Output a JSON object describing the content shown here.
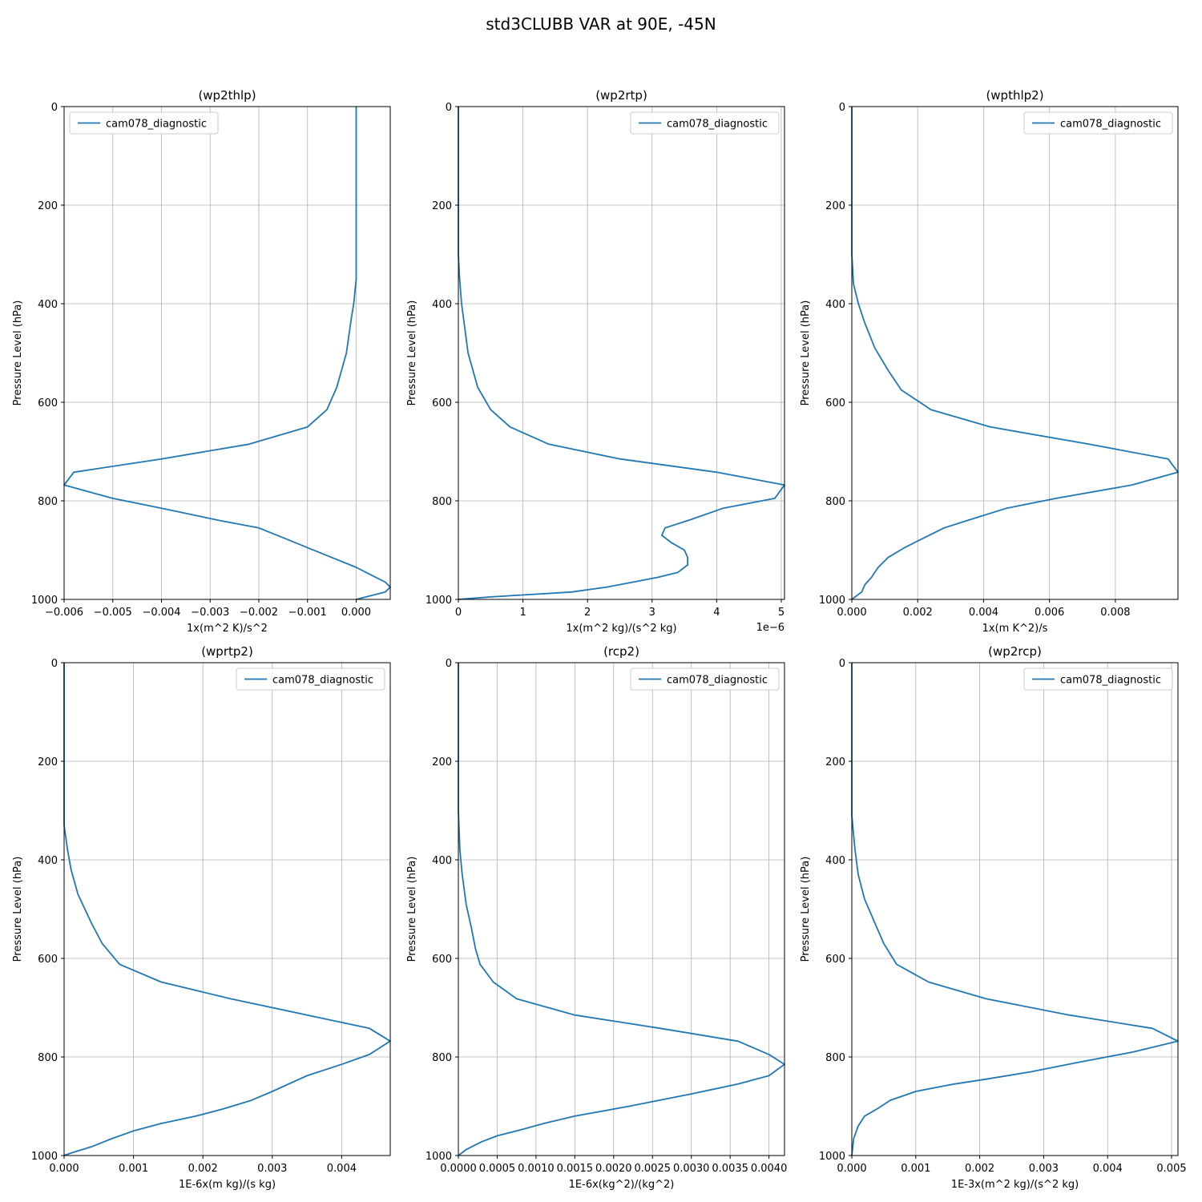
{
  "figure": {
    "suptitle": "std3CLUBB VAR at 90E, -45N"
  },
  "chart_data": [
    {
      "type": "line",
      "title": "(wp2thlp)",
      "xlabel": "1x(m^2 K)/s^2",
      "ylabel": "Pressure Level (hPa)",
      "xlim": [
        -0.006,
        0.0007
      ],
      "ylim": [
        1000,
        0
      ],
      "xticks": [
        -0.006,
        -0.005,
        -0.004,
        -0.003,
        -0.002,
        -0.001,
        0.0
      ],
      "xtick_labels": [
        "−0.006",
        "−0.005",
        "−0.004",
        "−0.003",
        "−0.002",
        "−0.001",
        "0.000"
      ],
      "yticks": [
        0,
        200,
        400,
        600,
        800,
        1000
      ],
      "ytick_labels": [
        "0",
        "200",
        "400",
        "600",
        "800",
        "1000"
      ],
      "offset_text": "",
      "grid": true,
      "legend": "top-left",
      "series": [
        {
          "name": "cam078_diagnostic",
          "color": "#1f77b4",
          "x": [
            0.0,
            0.0,
            0.0,
            0.0,
            0.0,
            -5e-05,
            -0.0001,
            -0.0002,
            -0.0004,
            -0.0006,
            -0.001,
            -0.0022,
            -0.004,
            -0.0058,
            -0.006,
            -0.005,
            -0.004,
            -0.0028,
            -0.002,
            -0.0015,
            -0.001,
            -0.0005,
            0.0,
            0.0003,
            0.0006,
            0.0007,
            0.0006,
            0.0
          ],
          "y": [
            0,
            100,
            200,
            300,
            350,
            400,
            430,
            500,
            570,
            615,
            650,
            685,
            715,
            742,
            768,
            795,
            815,
            840,
            855,
            875,
            895,
            915,
            935,
            950,
            965,
            975,
            985,
            1000
          ]
        }
      ]
    },
    {
      "type": "line",
      "title": "(wp2rtp)",
      "xlabel": "1x(m^2 kg)/(s^2 kg)",
      "ylabel": "Pressure Level (hPa)",
      "xlim": [
        0,
        5.05e-06
      ],
      "ylim": [
        1000,
        0
      ],
      "xticks": [
        0,
        1e-06,
        2e-06,
        3e-06,
        4e-06,
        5e-06
      ],
      "xtick_labels": [
        "0",
        "1",
        "2",
        "3",
        "4",
        "5"
      ],
      "yticks": [
        0,
        200,
        400,
        600,
        800,
        1000
      ],
      "ytick_labels": [
        "0",
        "200",
        "400",
        "600",
        "800",
        "1000"
      ],
      "offset_text": "1e−6",
      "grid": true,
      "legend": "top-right",
      "series": [
        {
          "name": "cam078_diagnostic",
          "color": "#1f77b4",
          "x": [
            0,
            0,
            0,
            2e-08,
            5e-08,
            1.5e-07,
            3e-07,
            5e-07,
            8e-07,
            1.4e-06,
            2.5e-06,
            4e-06,
            5.05e-06,
            4.9e-06,
            4.1e-06,
            3.6e-06,
            3.2e-06,
            3.15e-06,
            3.3e-06,
            3.5e-06,
            3.55e-06,
            3.55e-06,
            3.4e-06,
            3.1e-06,
            2.7e-06,
            2.3e-06,
            1.75e-06,
            5e-07,
            0
          ],
          "y": [
            0,
            200,
            300,
            350,
            400,
            500,
            570,
            615,
            650,
            685,
            715,
            742,
            768,
            795,
            815,
            838,
            855,
            870,
            885,
            900,
            915,
            930,
            945,
            955,
            965,
            975,
            985,
            995,
            1000
          ]
        }
      ]
    },
    {
      "type": "line",
      "title": "(wpthlp2)",
      "xlabel": "1x(m K^2)/s",
      "ylabel": "Pressure Level (hPa)",
      "xlim": [
        0,
        0.0099
      ],
      "ylim": [
        1000,
        0
      ],
      "xticks": [
        0,
        0.002,
        0.004,
        0.006,
        0.008
      ],
      "xtick_labels": [
        "0.000",
        "0.002",
        "0.004",
        "0.006",
        "0.008"
      ],
      "yticks": [
        0,
        200,
        400,
        600,
        800,
        1000
      ],
      "ytick_labels": [
        "0",
        "200",
        "400",
        "600",
        "800",
        "1000"
      ],
      "offset_text": "",
      "grid": true,
      "legend": "top-right",
      "series": [
        {
          "name": "cam078_diagnostic",
          "color": "#1f77b4",
          "x": [
            0,
            0,
            5e-05,
            0.0002,
            0.0004,
            0.0007,
            0.0011,
            0.0015,
            0.0024,
            0.0042,
            0.0072,
            0.0096,
            0.0099,
            0.0085,
            0.0062,
            0.0047,
            0.0035,
            0.0028,
            0.0022,
            0.0016,
            0.0011,
            0.0008,
            0.0006,
            0.0004,
            0.0003,
            0.0001,
            0
          ],
          "y": [
            0,
            300,
            360,
            400,
            440,
            490,
            535,
            575,
            615,
            650,
            685,
            715,
            742,
            768,
            795,
            815,
            840,
            855,
            875,
            895,
            915,
            935,
            955,
            970,
            985,
            995,
            1000
          ]
        }
      ]
    },
    {
      "type": "line",
      "title": "(wprtp2)",
      "xlabel": "1E-6x(m kg)/(s kg)",
      "ylabel": "Pressure Level (hPa)",
      "xlim": [
        0,
        0.0047
      ],
      "ylim": [
        1000,
        0
      ],
      "xticks": [
        0,
        0.001,
        0.002,
        0.003,
        0.004
      ],
      "xtick_labels": [
        "0.000",
        "0.001",
        "0.002",
        "0.003",
        "0.004"
      ],
      "yticks": [
        0,
        200,
        400,
        600,
        800,
        1000
      ],
      "ytick_labels": [
        "0",
        "200",
        "400",
        "600",
        "800",
        "1000"
      ],
      "offset_text": "",
      "grid": true,
      "legend": "top-right",
      "series": [
        {
          "name": "cam078_diagnostic",
          "color": "#1f77b4",
          "x": [
            0,
            0,
            5e-05,
            0.0001,
            0.0002,
            0.0004,
            0.00055,
            0.0008,
            0.0014,
            0.0024,
            0.0035,
            0.0044,
            0.0047,
            0.0044,
            0.004,
            0.0035,
            0.003,
            0.0027,
            0.0023,
            0.0019,
            0.0014,
            0.001,
            0.0007,
            0.0004,
            0.0001,
            0
          ],
          "y": [
            0,
            330,
            380,
            420,
            470,
            530,
            570,
            612,
            648,
            682,
            715,
            742,
            768,
            795,
            815,
            838,
            870,
            888,
            905,
            920,
            935,
            950,
            965,
            982,
            995,
            1000
          ]
        }
      ]
    },
    {
      "type": "line",
      "title": "(rcp2)",
      "xlabel": "1E-6x(kg^2)/(kg^2)",
      "ylabel": "Pressure Level (hPa)",
      "xlim": [
        0,
        0.0042
      ],
      "ylim": [
        1000,
        0
      ],
      "xticks": [
        0,
        0.0005,
        0.001,
        0.0015,
        0.002,
        0.0025,
        0.003,
        0.0035,
        0.004
      ],
      "xtick_labels": [
        "0.0000",
        "0.0005",
        "0.0010",
        "0.0015",
        "0.0020",
        "0.0025",
        "0.0030",
        "0.0035",
        "0.0040"
      ],
      "yticks": [
        0,
        200,
        400,
        600,
        800,
        1000
      ],
      "ytick_labels": [
        "0",
        "200",
        "400",
        "600",
        "800",
        "1000"
      ],
      "offset_text": "",
      "grid": true,
      "legend": "top-right",
      "series": [
        {
          "name": "cam078_diagnostic",
          "color": "#1f77b4",
          "x": [
            0,
            0,
            2e-05,
            5e-05,
            0.0001,
            0.00017,
            0.00022,
            0.00028,
            0.00045,
            0.00075,
            0.0015,
            0.0026,
            0.0036,
            0.004,
            0.0042,
            0.004,
            0.0036,
            0.003,
            0.0022,
            0.0015,
            0.0011,
            0.0008,
            0.0005,
            0.0003,
            0.0001,
            0
          ],
          "y": [
            0,
            300,
            380,
            430,
            490,
            540,
            580,
            612,
            648,
            682,
            715,
            742,
            768,
            795,
            815,
            838,
            855,
            875,
            900,
            920,
            935,
            948,
            960,
            972,
            988,
            1000
          ]
        }
      ]
    },
    {
      "type": "line",
      "title": "(wp2rcp)",
      "xlabel": "1E-3x(m^2 kg)/(s^2 kg)",
      "ylabel": "Pressure Level (hPa)",
      "xlim": [
        0,
        0.0051
      ],
      "ylim": [
        1000,
        0
      ],
      "xticks": [
        0,
        0.001,
        0.002,
        0.003,
        0.004,
        0.005
      ],
      "xtick_labels": [
        "0.000",
        "0.001",
        "0.002",
        "0.003",
        "0.004",
        "0.005"
      ],
      "yticks": [
        0,
        200,
        400,
        600,
        800,
        1000
      ],
      "ytick_labels": [
        "0",
        "200",
        "400",
        "600",
        "800",
        "1000"
      ],
      "offset_text": "",
      "grid": true,
      "legend": "top-right",
      "series": [
        {
          "name": "cam078_diagnostic",
          "color": "#1f77b4",
          "x": [
            0,
            0,
            5e-05,
            0.0001,
            0.0002,
            0.0004,
            0.0005,
            0.0007,
            0.0012,
            0.0021,
            0.0034,
            0.0047,
            0.0051,
            0.0044,
            0.0035,
            0.0028,
            0.0021,
            0.0016,
            0.001,
            0.0006,
            0.0004,
            0.0002,
            0.0001,
            3e-05,
            0
          ],
          "y": [
            0,
            310,
            380,
            430,
            480,
            540,
            570,
            612,
            648,
            682,
            715,
            742,
            768,
            790,
            812,
            830,
            845,
            855,
            870,
            888,
            905,
            920,
            940,
            965,
            1000
          ]
        }
      ]
    }
  ]
}
